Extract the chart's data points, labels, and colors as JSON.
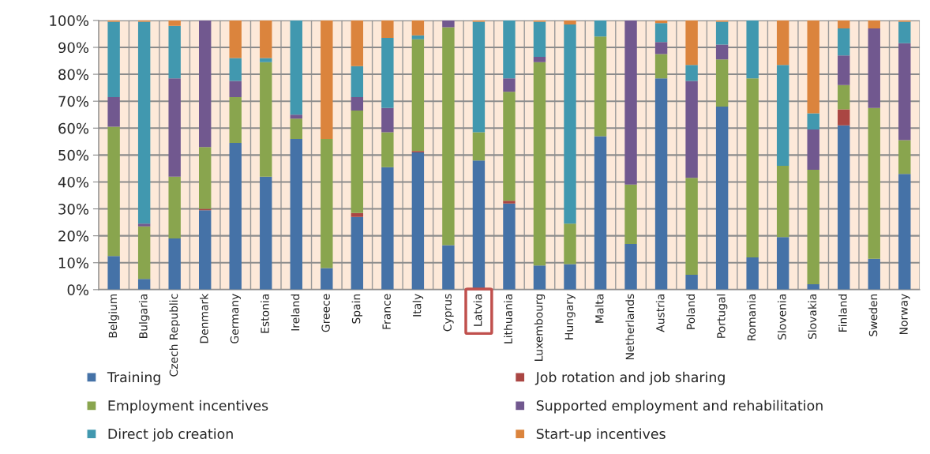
{
  "chart_data": {
    "type": "bar",
    "stacked": true,
    "categories": [
      "Belgium",
      "Bulgaria",
      "Czech Republic",
      "Denmark",
      "Germany",
      "Estonia",
      "Ireland",
      "Greece",
      "Spain",
      "France",
      "Italy",
      "Cyprus",
      "Latvia",
      "Lithuania",
      "Luxembourg",
      "Hungary",
      "Malta",
      "Netherlands",
      "Austria",
      "Poland",
      "Portugal",
      "Romania",
      "Slovenia",
      "Slovakia",
      "Finland",
      "Sweden",
      "Norway"
    ],
    "series": [
      {
        "name": "Training",
        "color": "#4572a7",
        "values": [
          12.5,
          4,
          19,
          29.5,
          54.5,
          42,
          56,
          8,
          27,
          45.5,
          51,
          16.5,
          48,
          32,
          9,
          9.5,
          57,
          17,
          78.5,
          5.5,
          68,
          12,
          19.5,
          2,
          61,
          11.5,
          43
        ]
      },
      {
        "name": "Job rotation and job sharing",
        "color": "#aa4643",
        "values": [
          0,
          0,
          0,
          0.5,
          0,
          0,
          0,
          0,
          1.5,
          0,
          0.5,
          0,
          0,
          1,
          0,
          0,
          0,
          0,
          0,
          0,
          0,
          0,
          0,
          0,
          6,
          0,
          0
        ]
      },
      {
        "name": "Employment incentives",
        "color": "#89a54e",
        "values": [
          48,
          19.5,
          23,
          23,
          17,
          42.5,
          7.5,
          48,
          38,
          13,
          41.5,
          81,
          10.5,
          40.5,
          75.5,
          15,
          37,
          22,
          9,
          36,
          17.5,
          66.5,
          26.5,
          42.5,
          9,
          56,
          12.5
        ]
      },
      {
        "name": "Supported employment and rehabilitation",
        "color": "#71588f",
        "values": [
          11,
          1,
          36.5,
          47,
          6,
          0,
          1.5,
          0,
          5,
          9,
          0,
          2.5,
          0,
          5,
          2,
          0,
          0,
          61,
          4.5,
          36,
          5.5,
          0,
          0,
          15,
          11,
          29.5,
          36
        ]
      },
      {
        "name": "Direct job creation",
        "color": "#4198af",
        "values": [
          28,
          75,
          19.5,
          0,
          8.5,
          1.5,
          35,
          0,
          11.5,
          26,
          1.5,
          0,
          41,
          21.5,
          13,
          74,
          6,
          0,
          7,
          6,
          8.5,
          21.5,
          37.5,
          6,
          10,
          0,
          8
        ]
      },
      {
        "name": "Start-up incentives",
        "color": "#db843d",
        "values": [
          0.5,
          0.5,
          2,
          0,
          14,
          14,
          0,
          44,
          17,
          6.5,
          5.5,
          0,
          0.5,
          0,
          0.5,
          1.5,
          0,
          0,
          1,
          16.5,
          0.5,
          0,
          16.5,
          34.5,
          3,
          3,
          0.5
        ]
      }
    ],
    "ylim": [
      0,
      100
    ],
    "yticks": [
      {
        "value": 0,
        "label": "0%"
      },
      {
        "value": 10,
        "label": "10%"
      },
      {
        "value": 20,
        "label": "20%"
      },
      {
        "value": 30,
        "label": "30%"
      },
      {
        "value": 40,
        "label": "40%"
      },
      {
        "value": 50,
        "label": "50%"
      },
      {
        "value": 60,
        "label": "60%"
      },
      {
        "value": 70,
        "label": "70%"
      },
      {
        "value": 80,
        "label": "80%"
      },
      {
        "value": 90,
        "label": "90%"
      },
      {
        "value": 100,
        "label": "100%"
      }
    ],
    "grid": true,
    "legend": "bottom"
  }
}
